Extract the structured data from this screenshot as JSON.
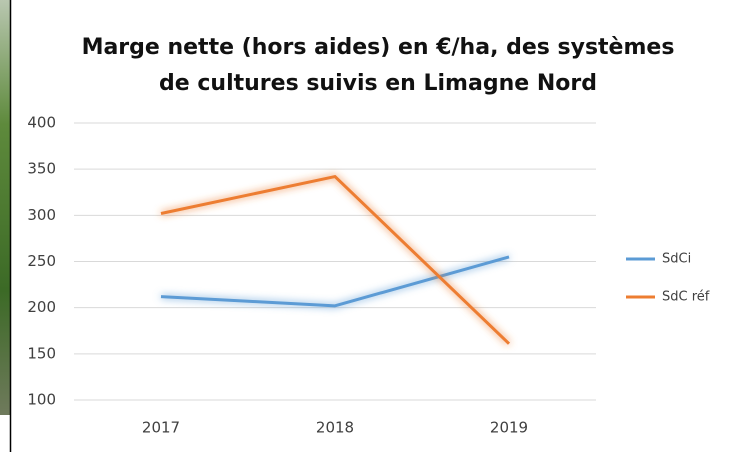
{
  "chart_data": {
    "type": "line",
    "title": [
      "Marge nette (hors aides) en €/ha, des systèmes",
      "de cultures suivis en Limagne Nord"
    ],
    "categories": [
      "2017",
      "2018",
      "2019"
    ],
    "series": [
      {
        "name": "SdCi",
        "color": "#5b9bd5",
        "values": [
          212,
          202,
          255
        ]
      },
      {
        "name": "SdC réf",
        "color": "#ed7d31",
        "values": [
          302,
          342,
          161
        ]
      }
    ],
    "ylim": [
      100,
      400
    ],
    "yticks": [
      100,
      150,
      200,
      250,
      300,
      350,
      400
    ],
    "grid": true,
    "legend": "right"
  }
}
